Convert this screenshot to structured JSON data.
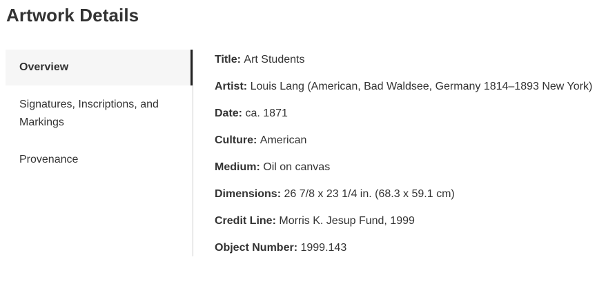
{
  "header": {
    "title": "Artwork Details"
  },
  "tabs": {
    "items": [
      {
        "label": "Overview",
        "state": "active"
      },
      {
        "label": "Signatures, Inscriptions, and Markings",
        "state": "inactive"
      },
      {
        "label": "Provenance",
        "state": "inactive"
      }
    ]
  },
  "overview": {
    "rows": [
      {
        "label": "Title:",
        "value": "Art Students"
      },
      {
        "label": "Artist:",
        "value": "Louis Lang (American, Bad Waldsee, Germany 1814–1893 New York)"
      },
      {
        "label": "Date:",
        "value": "ca. 1871"
      },
      {
        "label": "Culture:",
        "value": "American"
      },
      {
        "label": "Medium:",
        "value": "Oil on canvas"
      },
      {
        "label": "Dimensions:",
        "value": "26 7/8 x 23 1/4 in. (68.3 x 59.1 cm)"
      },
      {
        "label": "Credit Line:",
        "value": "Morris K. Jesup Fund, 1999"
      },
      {
        "label": "Object Number:",
        "value": "1999.143"
      }
    ]
  },
  "colors": {
    "text": "#333333",
    "active_tab_bg": "#f6f6f6",
    "active_tab_bar": "#222222",
    "divider": "#cccccc"
  }
}
